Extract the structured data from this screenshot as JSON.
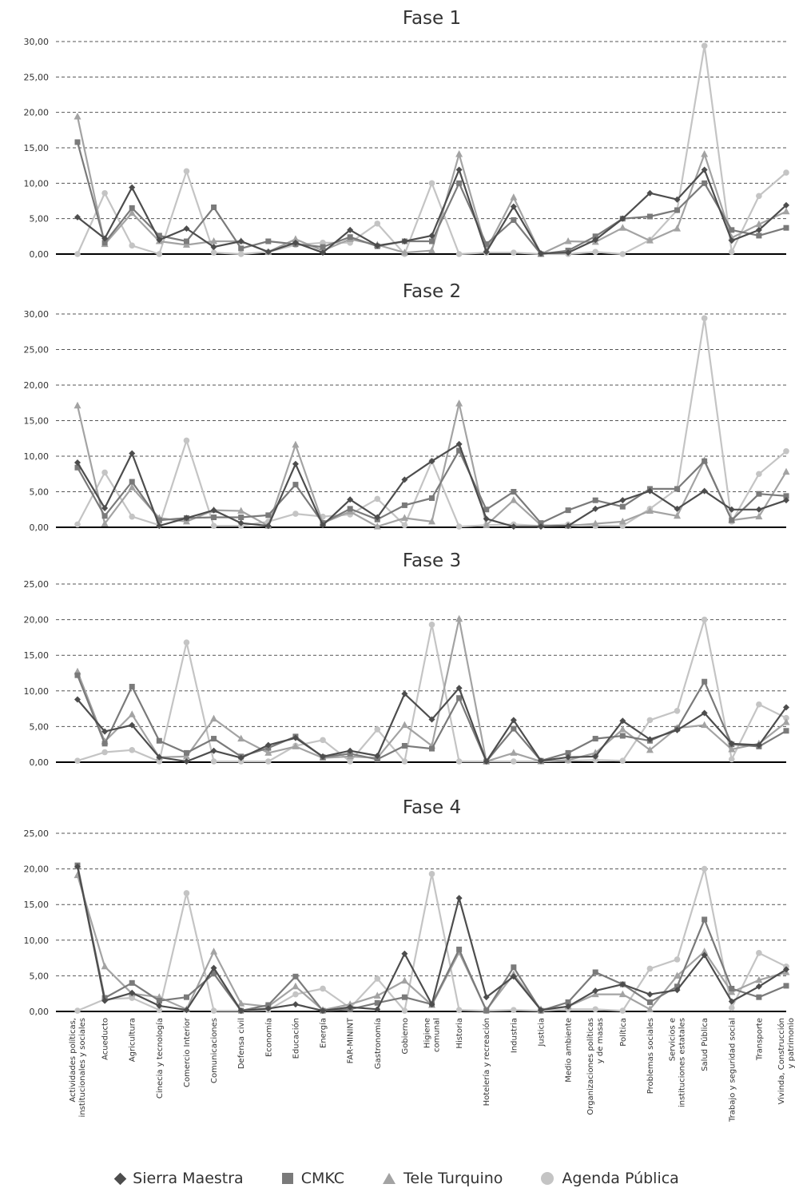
{
  "colors": {
    "Sierra Maestra": "#4d4d4d",
    "CMKC": "#7a7a7a",
    "Tele Turquino": "#a3a3a3",
    "Agenda Pública": "#c4c4c4"
  },
  "legend": [
    {
      "name": "Sierra Maestra",
      "marker": "diamond"
    },
    {
      "name": "CMKC",
      "marker": "square"
    },
    {
      "name": "Tele Turquino",
      "marker": "triangle"
    },
    {
      "name": "Agenda Pública",
      "marker": "circle"
    }
  ],
  "categories": [
    "Actividades políticas, institucionales y sociales",
    "Acueducto",
    "Agricultura",
    "Cinecia y tecnología",
    "Comercio Interior",
    "Comunicaciones",
    "Defensa civil",
    "Economía",
    "Educación",
    "Energía",
    "FAR-MININT",
    "Gastronomía",
    "Gobierno",
    "Higiene comunal",
    "Historia",
    "Hotelería y recreación",
    "Industria",
    "Justicia",
    "Medio ambiente",
    "Organizaciones políticas y de masas",
    "Política",
    "Problemas sociales",
    "Servicios e instituciones estatales",
    "Salud Pública",
    "Trabajo y seguridad social",
    "Transporte",
    "Vivinda, Construcción y patrimonio"
  ],
  "chart_data": [
    {
      "type": "line",
      "title": "Fase 1",
      "ylim": [
        0,
        30
      ],
      "yticks": [
        "0,00",
        "5,00",
        "10,00",
        "15,00",
        "20,00",
        "25,00",
        "30,00"
      ],
      "grid": true,
      "series": [
        {
          "name": "Sierra Maestra",
          "values": [
            5.2,
            2.2,
            9.4,
            2.0,
            3.6,
            1.0,
            1.8,
            0.3,
            1.6,
            0.2,
            3.4,
            1.2,
            1.8,
            2.6,
            11.9,
            0.3,
            6.7,
            0.1,
            0.2,
            2.0,
            5.0,
            8.6,
            7.7,
            11.9,
            1.9,
            3.4,
            6.9
          ]
        },
        {
          "name": "CMKC",
          "values": [
            15.8,
            1.6,
            6.5,
            2.6,
            1.8,
            6.6,
            0.8,
            1.8,
            1.4,
            1.0,
            2.4,
            1.1,
            1.8,
            1.8,
            10.0,
            1.4,
            4.8,
            0.0,
            0.5,
            2.5,
            5.0,
            5.3,
            6.2,
            10.0,
            3.4,
            2.6,
            3.7
          ]
        },
        {
          "name": "Tele Turquino",
          "values": [
            19.4,
            1.4,
            5.8,
            1.8,
            1.3,
            1.8,
            1.8,
            0.3,
            2.1,
            0.5,
            2.1,
            1.3,
            0.2,
            0.5,
            14.1,
            0.6,
            8.0,
            0.0,
            1.8,
            1.7,
            3.7,
            1.9,
            3.6,
            14.1,
            2.3,
            4.2,
            6.0
          ]
        },
        {
          "name": "Agenda Pública",
          "values": [
            0.0,
            8.6,
            1.2,
            0.0,
            11.7,
            0.2,
            0.0,
            0.3,
            1.3,
            1.6,
            1.6,
            4.3,
            0.0,
            10.0,
            0.0,
            0.2,
            0.2,
            0.0,
            0.0,
            0.3,
            0.0,
            2.0,
            6.2,
            29.4,
            0.3,
            8.2,
            11.5
          ]
        }
      ]
    },
    {
      "type": "line",
      "title": "Fase 2",
      "ylim": [
        0,
        30
      ],
      "yticks": [
        "0,00",
        "5,00",
        "10,00",
        "15,00",
        "20,00",
        "25,00",
        "30,00"
      ],
      "grid": true,
      "series": [
        {
          "name": "Sierra Maestra",
          "values": [
            9.1,
            2.7,
            10.4,
            0.2,
            1.3,
            2.4,
            0.6,
            0.2,
            8.9,
            0.3,
            3.9,
            1.4,
            6.7,
            9.3,
            11.7,
            1.2,
            0.1,
            0.1,
            0.2,
            2.6,
            3.8,
            5.1,
            2.6,
            5.1,
            2.5,
            2.5,
            3.8
          ]
        },
        {
          "name": "CMKC",
          "values": [
            8.4,
            1.6,
            6.4,
            1.0,
            1.3,
            1.4,
            1.4,
            1.7,
            6.0,
            0.6,
            2.6,
            1.1,
            3.1,
            4.1,
            10.8,
            2.5,
            5.0,
            0.6,
            2.4,
            3.8,
            2.9,
            5.4,
            5.4,
            9.3,
            1.0,
            4.7,
            4.4
          ]
        },
        {
          "name": "Tele Turquino",
          "values": [
            17.1,
            0.5,
            5.6,
            1.3,
            0.8,
            2.4,
            2.3,
            0.2,
            11.6,
            0.6,
            2.2,
            0.1,
            1.3,
            0.8,
            17.4,
            0.3,
            3.8,
            0.3,
            0.2,
            0.5,
            0.8,
            2.3,
            1.6,
            9.4,
            1.0,
            1.5,
            7.8
          ]
        },
        {
          "name": "Agenda Pública",
          "values": [
            0.4,
            7.7,
            1.5,
            0.3,
            12.2,
            0.2,
            0.2,
            0.8,
            1.9,
            1.5,
            1.8,
            4.0,
            0.3,
            9.3,
            0.1,
            0.3,
            0.4,
            0.2,
            0.4,
            0.2,
            0.2,
            2.6,
            5.4,
            29.4,
            0.8,
            7.5,
            10.7
          ]
        }
      ]
    },
    {
      "type": "line",
      "title": "Fase 3",
      "ylim": [
        0,
        25
      ],
      "yticks": [
        "0,00",
        "5,00",
        "10,00",
        "15,00",
        "20,00",
        "25,00"
      ],
      "grid": true,
      "series": [
        {
          "name": "Sierra Maestra",
          "values": [
            8.8,
            4.3,
            5.2,
            0.7,
            0.1,
            1.6,
            0.6,
            2.4,
            3.4,
            0.8,
            1.6,
            0.9,
            9.6,
            6.0,
            10.4,
            0.1,
            5.9,
            0.2,
            0.7,
            0.8,
            5.8,
            3.2,
            4.5,
            6.9,
            2.6,
            2.4,
            7.7
          ]
        },
        {
          "name": "CMKC",
          "values": [
            12.2,
            2.6,
            10.6,
            3.0,
            1.3,
            3.3,
            0.8,
            2.0,
            3.6,
            0.7,
            1.2,
            0.4,
            2.3,
            1.9,
            9.0,
            0.1,
            4.7,
            0.2,
            1.3,
            3.3,
            3.7,
            3.0,
            4.7,
            11.3,
            2.5,
            2.2,
            4.4
          ]
        },
        {
          "name": "Tele Turquino",
          "values": [
            12.7,
            2.9,
            6.7,
            0.7,
            0.8,
            6.1,
            3.3,
            1.3,
            2.2,
            0.6,
            0.8,
            0.6,
            5.2,
            2.3,
            20.1,
            0.1,
            1.3,
            0.1,
            0.3,
            1.3,
            4.6,
            1.7,
            4.8,
            5.2,
            1.8,
            2.6,
            5.6
          ]
        },
        {
          "name": "Agenda Pública",
          "values": [
            0.2,
            1.4,
            1.7,
            0.1,
            16.8,
            0.1,
            0.1,
            0.1,
            2.3,
            3.1,
            0.1,
            4.6,
            0.1,
            19.3,
            0.1,
            0.1,
            0.1,
            0.1,
            0.2,
            0.3,
            0.2,
            5.9,
            7.2,
            20.0,
            0.4,
            8.1,
            6.2
          ]
        }
      ]
    },
    {
      "type": "line",
      "title": "Fase 4",
      "ylim": [
        0,
        25
      ],
      "yticks": [
        "0,00",
        "5,00",
        "10,00",
        "15,00",
        "20,00",
        "25,00"
      ],
      "grid": true,
      "series": [
        {
          "name": "Sierra Maestra",
          "values": [
            20.3,
            1.5,
            2.6,
            0.8,
            0.2,
            6.1,
            0.1,
            0.4,
            1.0,
            0.1,
            0.6,
            0.3,
            8.1,
            1.0,
            15.9,
            2.0,
            4.9,
            0.2,
            0.7,
            2.9,
            3.8,
            2.4,
            3.0,
            7.9,
            1.4,
            3.5,
            5.9
          ]
        },
        {
          "name": "CMKC",
          "values": [
            20.5,
            1.9,
            4.0,
            1.5,
            2.0,
            5.3,
            0.1,
            0.9,
            4.9,
            0.1,
            0.3,
            1.2,
            2.0,
            1.0,
            8.7,
            0.1,
            6.2,
            0.1,
            1.3,
            5.5,
            3.8,
            1.3,
            3.5,
            12.9,
            3.2,
            2.0,
            3.6
          ]
        },
        {
          "name": "Tele Turquino",
          "values": [
            19.1,
            6.3,
            2.5,
            2.0,
            0.3,
            8.4,
            1.1,
            0.7,
            3.5,
            0.2,
            1.0,
            2.2,
            4.3,
            0.9,
            8.3,
            0.2,
            5.2,
            0.3,
            0.7,
            2.4,
            2.4,
            0.3,
            5.0,
            8.4,
            2.7,
            4.4,
            5.5
          ]
        },
        {
          "name": "Agenda Pública",
          "values": [
            0.1,
            1.7,
            1.9,
            0.2,
            16.6,
            0.1,
            0.1,
            0.2,
            2.4,
            3.2,
            0.5,
            4.6,
            0.1,
            19.3,
            0.2,
            0.1,
            0.2,
            0.1,
            0.3,
            0.3,
            0.1,
            6.0,
            7.3,
            20.0,
            0.5,
            8.2,
            6.3
          ]
        }
      ]
    }
  ]
}
